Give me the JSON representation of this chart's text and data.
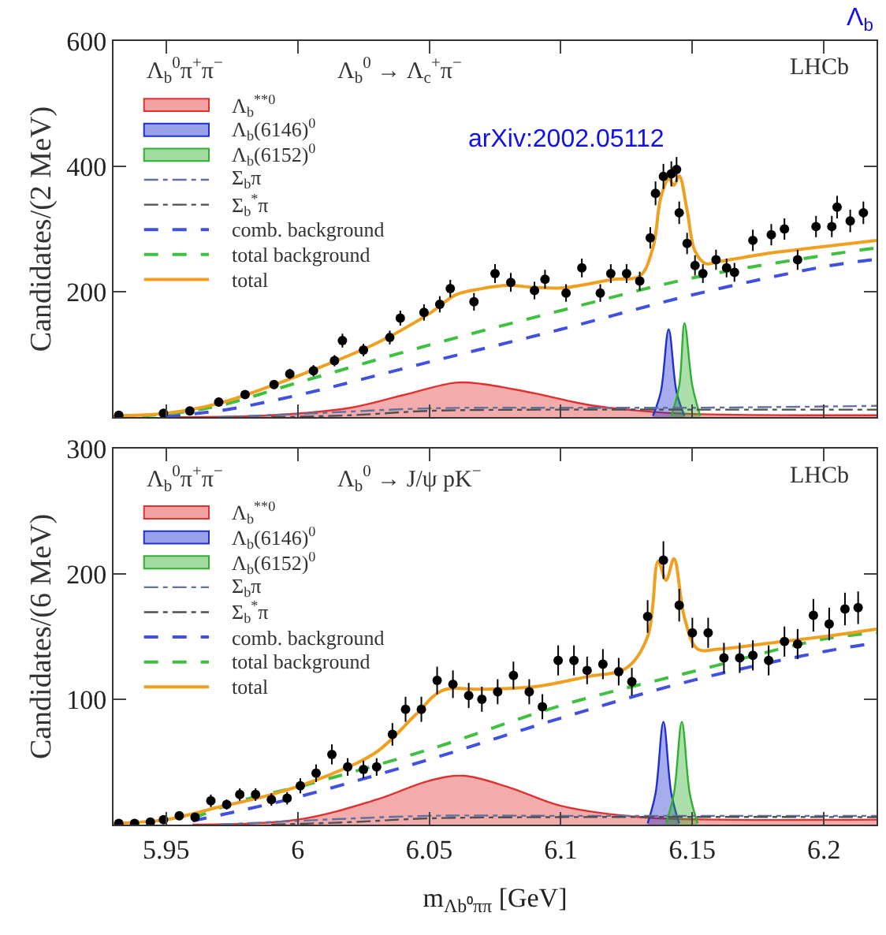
{
  "chart_data": [
    {
      "type": "line",
      "title": "Λ$_{b}$",
      "ylabel": "Candidates/(2 MeV)",
      "xlim": [
        5.93,
        6.22
      ],
      "ylim": [
        0,
        600
      ],
      "xticks": [
        5.95,
        6,
        6.05,
        6.1,
        6.15,
        6.2
      ],
      "yticks": [
        200,
        400,
        600
      ],
      "tick_labels": "y",
      "legend": "top left",
      "annotations": [
        "Λ$_{b}$$^{0}$π$^{+}$π$^{−}$",
        "Λ$_{b}$$^{0}$ → Λ$_{c}$$^{+}$π$^{−}$",
        "LHCb",
        "arXiv:2002.05112"
      ],
      "series": [
        {
          "name": "Λ$_{b}$$^{**0}$",
          "type": "area",
          "color": "#e03030",
          "x": [
            5.95,
            5.99,
            6.02,
            6.04,
            6.06,
            6.07,
            6.09,
            6.11,
            6.13,
            6.15,
            6.22
          ],
          "values": [
            0,
            3,
            15,
            35,
            55,
            53,
            38,
            20,
            10,
            5,
            3
          ]
        },
        {
          "name": "Λ$_{b}$(6146)$^{0}$",
          "type": "area",
          "color": "#2030d0",
          "x": [
            6.135,
            6.138,
            6.141,
            6.144,
            6.147
          ],
          "values": [
            2,
            40,
            140,
            40,
            2
          ]
        },
        {
          "name": "Λ$_{b}$(6152)$^{0}$",
          "type": "area",
          "color": "#30b030",
          "x": [
            6.142,
            6.145,
            6.147,
            6.15,
            6.153
          ],
          "values": [
            2,
            50,
            150,
            50,
            2
          ]
        },
        {
          "name": "Σ$_{b}$π",
          "color": "#6070a0",
          "line_style": "dashdot",
          "x": [
            5.97,
            6.0,
            6.05,
            6.1,
            6.15,
            6.22
          ],
          "values": [
            0,
            5,
            14,
            15,
            15,
            18
          ]
        },
        {
          "name": "Σ$_{b}$$^{*}$π",
          "color": "#505050",
          "line_style": "dashdot",
          "x": [
            5.99,
            6.02,
            6.05,
            6.1,
            6.15,
            6.22
          ],
          "values": [
            0,
            3,
            10,
            12,
            12,
            12
          ]
        },
        {
          "name": "comb. background",
          "color": "#4050e0",
          "line_style": "dashed",
          "x": [
            5.95,
            5.97,
            6.0,
            6.05,
            6.1,
            6.15,
            6.2,
            6.22
          ],
          "values": [
            2,
            10,
            35,
            88,
            140,
            195,
            240,
            252
          ]
        },
        {
          "name": "total background",
          "color": "#40c040",
          "line_style": "dashed",
          "x": [
            5.93,
            5.95,
            5.97,
            6.0,
            6.05,
            6.1,
            6.15,
            6.2,
            6.22
          ],
          "values": [
            0,
            5,
            18,
            55,
            115,
            170,
            222,
            258,
            270
          ]
        },
        {
          "name": "total",
          "color": "#f0a020",
          "line_style": "solid",
          "x": [
            5.93,
            5.95,
            5.97,
            5.99,
            6.01,
            6.03,
            6.05,
            6.06,
            6.07,
            6.08,
            6.09,
            6.1,
            6.11,
            6.12,
            6.13,
            6.135,
            6.138,
            6.141,
            6.143,
            6.145,
            6.148,
            6.151,
            6.155,
            6.16,
            6.18,
            6.2,
            6.22
          ],
          "values": [
            2,
            6,
            22,
            50,
            82,
            118,
            165,
            195,
            205,
            210,
            207,
            206,
            212,
            220,
            225,
            270,
            350,
            380,
            370,
            385,
            330,
            265,
            245,
            248,
            262,
            272,
            282
          ]
        },
        {
          "type": "scatter",
          "color": "#000000",
          "marker": "circle",
          "x": [
            5.932,
            5.949,
            5.959,
            5.97,
            5.98,
            5.991,
            5.997,
            6.006,
            6.014,
            6.017,
            6.025,
            6.035,
            6.039,
            6.048,
            6.054,
            6.058,
            6.067,
            6.075,
            6.081,
            6.09,
            6.094,
            6.102,
            6.108,
            6.115,
            6.119,
            6.125,
            6.13,
            6.134,
            6.136,
            6.139,
            6.142,
            6.144,
            6.145,
            6.148,
            6.151,
            6.154,
            6.159,
            6.163,
            6.166,
            6.173,
            6.18,
            6.185,
            6.19,
            6.197,
            6.203,
            6.205,
            6.21,
            6.215
          ],
          "values": [
            3,
            6,
            10,
            24,
            36,
            52,
            69,
            74,
            90,
            122,
            107,
            127,
            158,
            167,
            180,
            205,
            184,
            229,
            215,
            202,
            220,
            198,
            238,
            198,
            229,
            229,
            217,
            286,
            357,
            384,
            388,
            395,
            326,
            277,
            242,
            229,
            251,
            238,
            231,
            282,
            291,
            300,
            251,
            304,
            304,
            335,
            313,
            326
          ],
          "errors": [
            2,
            3,
            3,
            5,
            6,
            7,
            8,
            9,
            9,
            11,
            10,
            11,
            12,
            13,
            13,
            14,
            14,
            15,
            15,
            14,
            15,
            14,
            15,
            14,
            15,
            15,
            15,
            17,
            19,
            20,
            20,
            20,
            18,
            17,
            16,
            15,
            16,
            15,
            15,
            17,
            17,
            17,
            16,
            17,
            17,
            18,
            18,
            18
          ]
        }
      ]
    },
    {
      "type": "line",
      "xlabel": "m$_{Λb⁰ππ}$ [GeV]",
      "ylabel": "Candidates/(6 MeV)",
      "xlim": [
        5.93,
        6.22
      ],
      "ylim": [
        0,
        300
      ],
      "xticks": [
        5.95,
        6,
        6.05,
        6.1,
        6.15,
        6.2
      ],
      "yticks": [
        100,
        200,
        300
      ],
      "legend": "top left",
      "annotations": [
        "Λ$_{b}$$^{0}$π$^{+}$π$^{−}$",
        "Λ$_{b}$$^{0}$ → J/ψ pK$^{−}$",
        "LHCb"
      ],
      "series": [
        {
          "name": "Λ$_{b}$$^{**0}$",
          "type": "area",
          "color": "#e03030",
          "x": [
            5.96,
            6.0,
            6.03,
            6.05,
            6.063,
            6.08,
            6.1,
            6.13,
            6.16,
            6.22
          ],
          "values": [
            0,
            4,
            20,
            35,
            39,
            30,
            15,
            6,
            4,
            4
          ]
        },
        {
          "name": "Λ$_{b}$(6146)$^{0}$",
          "type": "area",
          "color": "#2030d0",
          "x": [
            6.133,
            6.136,
            6.139,
            6.142,
            6.145
          ],
          "values": [
            1,
            25,
            82,
            25,
            1
          ]
        },
        {
          "name": "Λ$_{b}$(6152)$^{0}$",
          "type": "area",
          "color": "#30b030",
          "x": [
            6.14,
            6.143,
            6.146,
            6.149,
            6.152
          ],
          "values": [
            1,
            25,
            82,
            25,
            1
          ]
        },
        {
          "name": "Σ$_{b}$π",
          "color": "#6070a0",
          "line_style": "dashdot",
          "x": [
            5.97,
            6.0,
            6.05,
            6.1,
            6.15,
            6.22
          ],
          "values": [
            0,
            3,
            7,
            7,
            7,
            7
          ]
        },
        {
          "name": "Σ$_{b}$$^{*}$π",
          "color": "#505050",
          "line_style": "dashdot",
          "x": [
            5.99,
            6.02,
            6.05,
            6.1,
            6.22
          ],
          "values": [
            0,
            2,
            5,
            6,
            6
          ]
        },
        {
          "name": "comb. background",
          "color": "#4050e0",
          "line_style": "dashed",
          "x": [
            5.96,
            5.98,
            6.0,
            6.05,
            6.1,
            6.15,
            6.2,
            6.22
          ],
          "values": [
            3,
            12,
            22,
            52,
            85,
            115,
            138,
            145
          ]
        },
        {
          "name": "total background",
          "color": "#40c040",
          "line_style": "dashed",
          "x": [
            5.96,
            5.98,
            6.0,
            6.05,
            6.1,
            6.15,
            6.2,
            6.22
          ],
          "values": [
            5,
            20,
            30,
            60,
            95,
            122,
            148,
            153
          ]
        },
        {
          "name": "total",
          "color": "#f0a020",
          "line_style": "solid",
          "x": [
            5.93,
            5.95,
            5.97,
            5.99,
            6.01,
            6.03,
            6.045,
            6.055,
            6.07,
            6.09,
            6.11,
            6.125,
            6.133,
            6.137,
            6.14,
            6.143,
            6.147,
            6.152,
            6.16,
            6.18,
            6.2,
            6.22
          ],
          "values": [
            1,
            4,
            14,
            24,
            38,
            58,
            88,
            107,
            108,
            110,
            118,
            125,
            150,
            210,
            195,
            212,
            165,
            140,
            140,
            145,
            150,
            156
          ]
        },
        {
          "type": "scatter",
          "color": "#000000",
          "marker": "circle",
          "x": [
            5.932,
            5.938,
            5.944,
            5.949,
            5.955,
            5.961,
            5.967,
            5.973,
            5.978,
            5.984,
            5.99,
            5.996,
            6.001,
            6.007,
            6.013,
            6.019,
            6.025,
            6.03,
            6.036,
            6.041,
            6.047,
            6.053,
            6.059,
            6.065,
            6.07,
            6.076,
            6.082,
            6.088,
            6.093,
            6.099,
            6.105,
            6.11,
            6.116,
            6.122,
            6.127,
            6.133,
            6.139,
            6.145,
            6.15,
            6.156,
            6.162,
            6.168,
            6.173,
            6.179,
            6.185,
            6.19,
            6.196,
            6.202,
            6.208,
            6.213
          ],
          "values": [
            1,
            1,
            2,
            4,
            7,
            6,
            19,
            16,
            24,
            24,
            20,
            21,
            31,
            41,
            56,
            46,
            44,
            46,
            72,
            92,
            92,
            115,
            112,
            103,
            100,
            106,
            119,
            106,
            94,
            131,
            131,
            123,
            128,
            122,
            114,
            166,
            211,
            175,
            153,
            153,
            133,
            133,
            135,
            131,
            146,
            144,
            167,
            160,
            172,
            173
          ],
          "errors": [
            1,
            1,
            2,
            2,
            3,
            3,
            5,
            4,
            5,
            5,
            5,
            5,
            6,
            7,
            8,
            7,
            7,
            7,
            9,
            10,
            10,
            11,
            11,
            10,
            10,
            10,
            11,
            10,
            10,
            12,
            12,
            11,
            12,
            11,
            11,
            13,
            15,
            13,
            12,
            12,
            12,
            12,
            12,
            12,
            12,
            12,
            13,
            13,
            13,
            13
          ]
        }
      ]
    }
  ]
}
